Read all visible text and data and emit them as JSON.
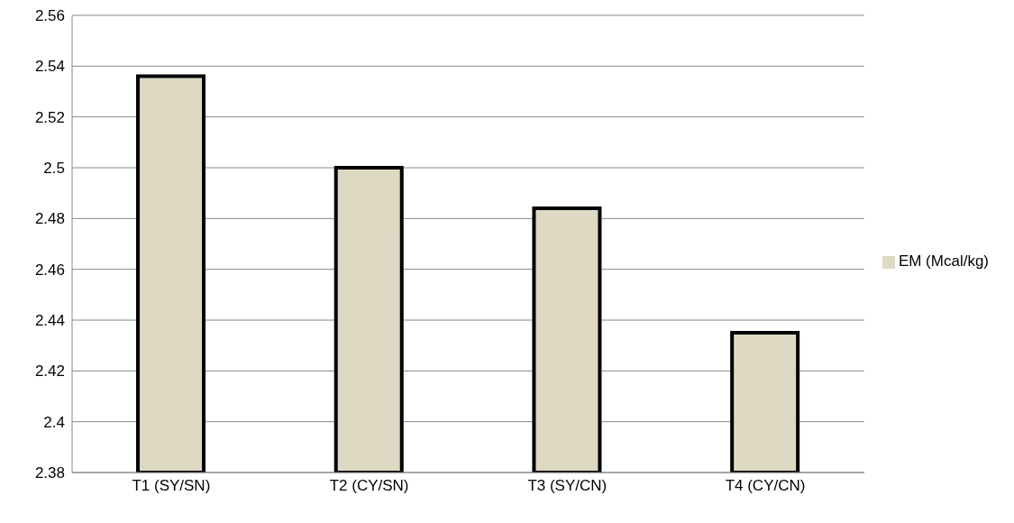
{
  "chart_data": {
    "type": "bar",
    "categories": [
      "T1 (SY/SN)",
      "T2 (CY/SN)",
      "T3 (SY/CN)",
      "T4 (CY/CN)"
    ],
    "series": [
      {
        "name": "EM (Mcal/kg)",
        "color": "#ddd9c3",
        "values": [
          2.536,
          2.5,
          2.484,
          2.435
        ]
      }
    ],
    "ylim": [
      2.38,
      2.56
    ],
    "yticks": [
      2.38,
      2.4,
      2.42,
      2.44,
      2.46,
      2.48,
      2.5,
      2.52,
      2.54,
      2.56
    ],
    "grid": "y",
    "legend": "right"
  }
}
